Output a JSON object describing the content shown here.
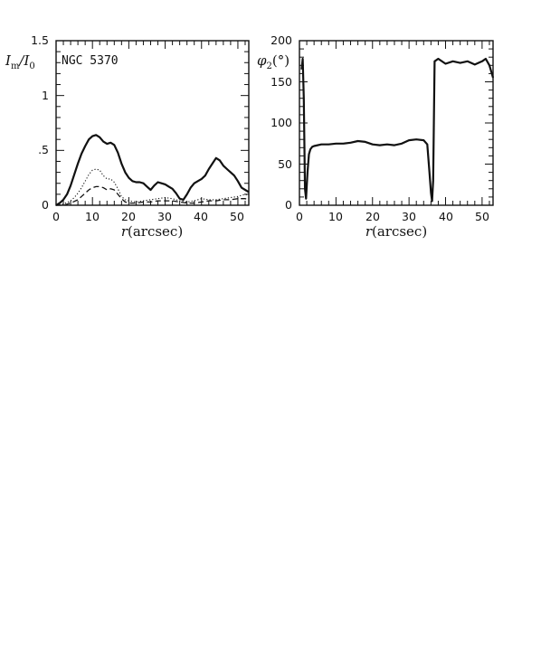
{
  "chart_data": [
    {
      "type": "line",
      "annotation": "NGC 5370",
      "xlabel": "r(arcsec)",
      "ylabel": "I_m/I_0",
      "ylabel_parts": {
        "main": "I",
        "sub1": "m",
        "slash": "/I",
        "sub2": "0"
      },
      "xlim": [
        0,
        53
      ],
      "ylim": [
        0,
        1.5
      ],
      "x_ticks": [
        0,
        10,
        20,
        30,
        40,
        50
      ],
      "y_ticks": [
        0,
        0.5,
        1,
        1.5
      ],
      "x_tick_labels": [
        "0",
        "10",
        "20",
        "30",
        "40",
        "50"
      ],
      "y_tick_labels": [
        "0",
        ".5",
        "1",
        "1.5"
      ],
      "series": [
        {
          "style": "solid",
          "x": [
            0,
            1,
            2,
            3,
            4,
            5,
            6,
            7,
            8,
            9,
            10,
            11,
            12,
            13,
            14,
            15,
            16,
            17,
            18,
            19,
            20,
            21,
            22,
            23,
            24,
            25,
            26,
            27,
            28,
            29,
            30,
            31,
            32,
            33,
            34,
            35,
            36,
            37,
            38,
            39,
            40,
            41,
            42,
            43,
            44,
            45,
            46,
            47,
            48,
            49,
            50,
            51,
            52,
            53
          ],
          "values": [
            0.0,
            0.02,
            0.05,
            0.1,
            0.18,
            0.28,
            0.38,
            0.47,
            0.54,
            0.6,
            0.63,
            0.64,
            0.62,
            0.58,
            0.56,
            0.57,
            0.55,
            0.48,
            0.38,
            0.3,
            0.25,
            0.22,
            0.21,
            0.21,
            0.2,
            0.17,
            0.14,
            0.18,
            0.21,
            0.2,
            0.19,
            0.17,
            0.15,
            0.11,
            0.06,
            0.05,
            0.1,
            0.16,
            0.2,
            0.22,
            0.24,
            0.27,
            0.33,
            0.38,
            0.43,
            0.41,
            0.36,
            0.33,
            0.3,
            0.27,
            0.22,
            0.16,
            0.14,
            0.12
          ]
        },
        {
          "style": "dotted",
          "x": [
            0,
            2,
            4,
            5,
            6,
            7,
            8,
            9,
            10,
            11,
            12,
            13,
            14,
            15,
            16,
            17,
            18,
            19,
            20,
            22,
            24,
            26,
            28,
            30,
            32,
            34,
            36,
            38,
            40,
            42,
            44,
            46,
            48,
            50,
            52,
            53
          ],
          "values": [
            0.0,
            0.01,
            0.04,
            0.07,
            0.11,
            0.16,
            0.22,
            0.28,
            0.32,
            0.33,
            0.32,
            0.27,
            0.24,
            0.24,
            0.21,
            0.15,
            0.08,
            0.05,
            0.04,
            0.03,
            0.04,
            0.05,
            0.06,
            0.07,
            0.06,
            0.04,
            0.03,
            0.04,
            0.06,
            0.05,
            0.05,
            0.06,
            0.07,
            0.08,
            0.1,
            0.09
          ]
        },
        {
          "style": "dashed",
          "x": [
            0,
            2,
            4,
            6,
            7,
            8,
            9,
            10,
            11,
            12,
            13,
            14,
            15,
            16,
            17,
            18,
            19,
            20,
            22,
            24,
            26,
            28,
            30,
            32,
            34,
            36,
            38,
            40,
            42,
            44,
            46,
            48,
            50,
            52,
            53
          ],
          "values": [
            0.0,
            0.0,
            0.02,
            0.05,
            0.08,
            0.11,
            0.14,
            0.16,
            0.17,
            0.17,
            0.16,
            0.14,
            0.15,
            0.14,
            0.1,
            0.06,
            0.03,
            0.02,
            0.02,
            0.03,
            0.03,
            0.04,
            0.04,
            0.04,
            0.03,
            0.02,
            0.02,
            0.03,
            0.04,
            0.04,
            0.05,
            0.05,
            0.06,
            0.06,
            0.05
          ]
        }
      ]
    },
    {
      "type": "line",
      "xlabel": "r(arcsec)",
      "ylabel": "φ2(°)",
      "ylabel_parts": {
        "main": "φ",
        "sub1": "2",
        "rest": "(°)"
      },
      "xlim": [
        0,
        53
      ],
      "ylim": [
        0,
        200
      ],
      "x_ticks": [
        0,
        10,
        20,
        30,
        40,
        50
      ],
      "y_ticks": [
        0,
        50,
        100,
        150,
        200
      ],
      "x_tick_labels": [
        "0",
        "10",
        "20",
        "30",
        "40",
        "50"
      ],
      "y_tick_labels": [
        "0",
        "50",
        "100",
        "150",
        "200"
      ],
      "series": [
        {
          "style": "solid",
          "x": [
            0.6,
            0.9,
            1.2,
            1.5,
            1.8,
            2.2,
            2.6,
            3.0,
            3.5,
            4,
            6,
            8,
            10,
            12,
            14,
            16,
            18,
            20,
            22,
            24,
            26,
            28,
            30,
            32,
            34,
            35,
            35.6,
            36.0,
            36.3,
            36.6,
            37.0,
            38,
            40,
            42,
            44,
            46,
            48,
            50,
            51,
            52,
            53
          ],
          "values": [
            165,
            178,
            130,
            20,
            8,
            40,
            62,
            68,
            71,
            72,
            74,
            74,
            75,
            75,
            76,
            78,
            77,
            74,
            73,
            74,
            73,
            75,
            79,
            80,
            79,
            74,
            40,
            15,
            5,
            30,
            175,
            178,
            172,
            175,
            173,
            175,
            171,
            175,
            178,
            170,
            155
          ]
        }
      ]
    }
  ]
}
